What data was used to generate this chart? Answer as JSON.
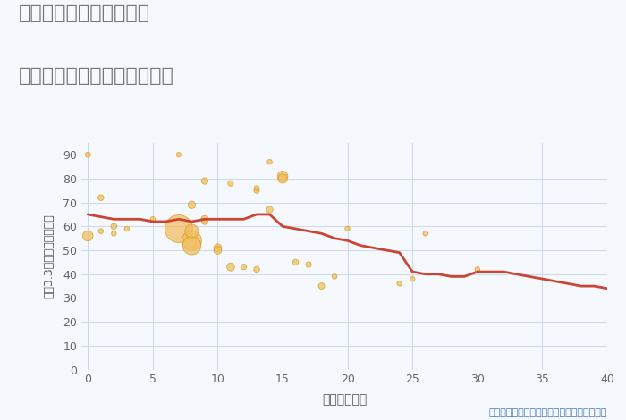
{
  "title_line1": "三重県松阪市飯高町粟野",
  "title_line2": "築年数別中古マンション価格",
  "xlabel": "築年数（年）",
  "ylabel": "坪（3.3㎡）単価（万円）",
  "annotation": "円の大きさは、取引のあった物件面積を示す",
  "background_color": "#f5f8fc",
  "plot_bg_color": "#f5f8fc",
  "xlim": [
    -0.5,
    40
  ],
  "ylim": [
    0,
    95
  ],
  "xticks": [
    0,
    5,
    10,
    15,
    20,
    25,
    30,
    35,
    40
  ],
  "yticks": [
    0,
    10,
    20,
    30,
    40,
    50,
    60,
    70,
    80,
    90
  ],
  "line_color": "#cc4433",
  "line_width": 2.0,
  "bubble_color": "#f0bc5e",
  "bubble_alpha": 0.72,
  "bubble_edge_color": "#d4960a",
  "scatter_x": [
    0,
    0,
    1,
    1,
    2,
    2,
    3,
    5,
    7,
    7,
    8,
    8,
    8,
    8,
    9,
    9,
    9,
    10,
    10,
    11,
    11,
    12,
    13,
    13,
    13,
    14,
    14,
    15,
    15,
    16,
    17,
    18,
    19,
    20,
    24,
    25,
    26,
    30
  ],
  "scatter_y": [
    90,
    56,
    72,
    58,
    60,
    57,
    59,
    63,
    90,
    59,
    69,
    54,
    52,
    58,
    79,
    63,
    62,
    51,
    50,
    78,
    43,
    43,
    75,
    76,
    42,
    87,
    67,
    81,
    80,
    45,
    44,
    35,
    39,
    59,
    36,
    38,
    57,
    42
  ],
  "scatter_size": [
    18,
    70,
    22,
    16,
    22,
    16,
    16,
    16,
    14,
    500,
    35,
    250,
    220,
    120,
    28,
    35,
    22,
    40,
    40,
    20,
    40,
    20,
    20,
    16,
    22,
    16,
    28,
    70,
    55,
    22,
    20,
    25,
    16,
    16,
    16,
    16,
    16,
    16
  ],
  "line_x": [
    0,
    1,
    2,
    3,
    4,
    5,
    6,
    7,
    8,
    9,
    10,
    11,
    12,
    13,
    14,
    15,
    16,
    17,
    18,
    19,
    20,
    21,
    22,
    23,
    24,
    25,
    26,
    27,
    28,
    29,
    30,
    31,
    32,
    33,
    34,
    35,
    36,
    37,
    38,
    39,
    40
  ],
  "line_y": [
    65,
    64,
    63,
    63,
    63,
    62,
    62,
    63,
    62,
    63,
    63,
    63,
    63,
    65,
    65,
    60,
    59,
    58,
    57,
    55,
    54,
    52,
    51,
    50,
    49,
    41,
    40,
    40,
    39,
    39,
    41,
    41,
    41,
    40,
    39,
    38,
    37,
    36,
    35,
    35,
    34
  ],
  "title_color": "#777777",
  "title_fontsize": 16,
  "annotation_color": "#4477bb",
  "annotation_fontsize": 8
}
